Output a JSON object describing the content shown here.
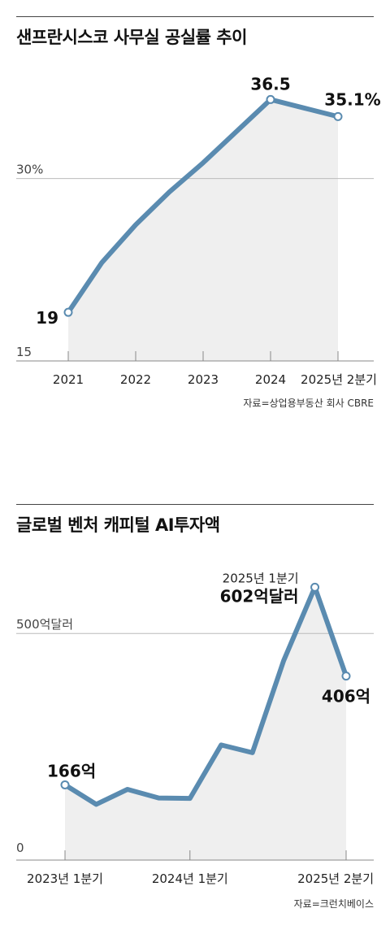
{
  "colors": {
    "line": "#5a8bb0",
    "fill": "#efefef",
    "grid": "#bbbbbb",
    "axis": "#888888"
  },
  "chart_data": [
    {
      "type": "area",
      "title": "샌프란시스코 사무실 공실률 추이",
      "categories": [
        "2021",
        "2022",
        "2023",
        "2024",
        "2025년 2분기"
      ],
      "x": [
        0,
        1,
        2,
        3,
        4,
        5,
        6,
        7,
        8
      ],
      "values": [
        19,
        23.1,
        26.2,
        28.9,
        31.3,
        33.9,
        36.5,
        35.8,
        35.1
      ],
      "ylim": [
        15,
        38
      ],
      "y_ticks": [
        {
          "value": 30,
          "label": "30%"
        },
        {
          "value": 15,
          "label": "15"
        }
      ],
      "annotations": [
        {
          "index": 0,
          "label": "19"
        },
        {
          "index": 6,
          "label": "36.5"
        },
        {
          "index": 8,
          "label": "35.1%"
        }
      ],
      "grid": "horizontal",
      "source": "자료=상업용부동산 회사 CBRE"
    },
    {
      "type": "area",
      "title": "글로벌 벤처 캐피털 AI투자액",
      "categories": [
        "2023년 1분기",
        "2024년 1분기",
        "2025년 2분기"
      ],
      "category_index": [
        0,
        4,
        9
      ],
      "x": [
        0,
        1,
        2,
        3,
        4,
        5,
        6,
        7,
        8,
        9
      ],
      "values": [
        166,
        123,
        156,
        137,
        136,
        254,
        237,
        440,
        602,
        406
      ],
      "ylim": [
        0,
        660
      ],
      "y_ticks": [
        {
          "value": 500,
          "label": "500억달러"
        },
        {
          "value": 0,
          "label": "0"
        }
      ],
      "annotations": [
        {
          "index": 0,
          "label": "166억"
        },
        {
          "index": 8,
          "label": "602억달러",
          "sublabel": "2025년 1분기"
        },
        {
          "index": 9,
          "label": "406억"
        }
      ],
      "grid": "horizontal",
      "source": "자료=크런치베이스"
    }
  ]
}
